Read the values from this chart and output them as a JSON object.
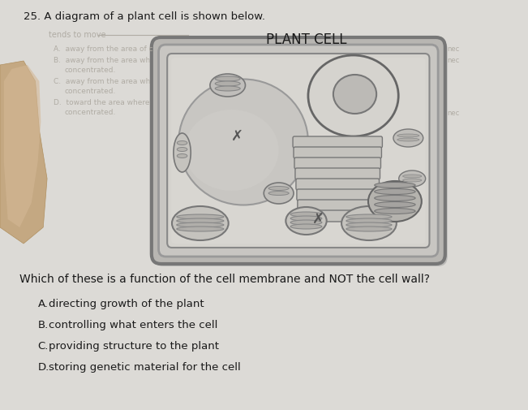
{
  "question_number": "25.",
  "question_text": "A diagram of a plant cell is shown below.",
  "cell_label": "PLANT CELL",
  "mc_question": "Which of these is a function of the cell membrane and NOT the cell wall?",
  "choices": [
    "A.   directing growth of the plant",
    "B.   controlling what enters the cell",
    "C.   providing structure to the plant",
    "D.   storing genetic material for the cell"
  ],
  "bg_color": "#dcdad6",
  "paper_color": "#e8e6e0",
  "text_color": "#1a1a1a",
  "faded_text_color": "#b0aca4",
  "finger_color": "#c8a882",
  "cell_wall_color": "#aaaaaa",
  "cell_inner_color": "#e0dfdc",
  "cell_bg_color": "#d8d6d0",
  "nucleus_color": "#c8c6c0",
  "vacuole_color": "#d0cecb",
  "organelle_color": "#b8b6b0"
}
